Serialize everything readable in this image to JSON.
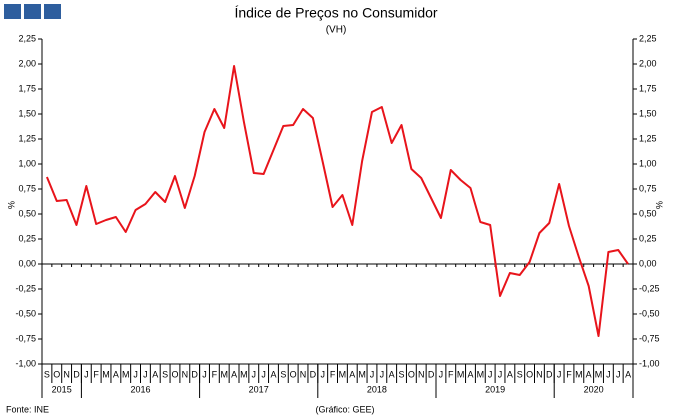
{
  "chart_data": {
    "type": "line",
    "title": "Índice de Preços no Consumidor",
    "subtitle": "(VH)",
    "y_label": "%",
    "source": "Fonte: INE",
    "credit": "(Gráfico: GEE)",
    "color": "#e8141b",
    "categories": [
      "S",
      "O",
      "N",
      "D",
      "J",
      "F",
      "M",
      "A",
      "M",
      "J",
      "J",
      "A",
      "S",
      "O",
      "N",
      "D",
      "J",
      "F",
      "M",
      "A",
      "M",
      "J",
      "J",
      "A",
      "S",
      "O",
      "N",
      "D",
      "J",
      "F",
      "M",
      "A",
      "M",
      "J",
      "J",
      "A",
      "S",
      "O",
      "N",
      "D",
      "J",
      "F",
      "M",
      "A",
      "M",
      "J",
      "J",
      "A",
      "S",
      "O",
      "N",
      "D",
      "J",
      "F",
      "M",
      "A",
      "M",
      "J",
      "J",
      "A"
    ],
    "x_groups": [
      "2015",
      "2016",
      "2017",
      "2018",
      "2019",
      "2020"
    ],
    "values": [
      0.87,
      0.63,
      0.64,
      0.39,
      0.78,
      0.4,
      0.44,
      0.47,
      0.32,
      0.54,
      0.6,
      0.72,
      0.62,
      0.88,
      0.56,
      0.88,
      1.32,
      1.55,
      1.36,
      1.98,
      1.42,
      0.91,
      0.9,
      1.14,
      1.38,
      1.39,
      1.55,
      1.46,
      1.02,
      0.57,
      0.69,
      0.39,
      1.03,
      1.52,
      1.57,
      1.21,
      1.39,
      0.95,
      0.86,
      0.66,
      0.46,
      0.94,
      0.84,
      0.76,
      0.42,
      0.39,
      -0.32,
      -0.09,
      -0.11,
      0.02,
      0.31,
      0.41,
      0.8,
      0.38,
      0.07,
      -0.22,
      -0.72,
      0.12,
      0.14,
      0.0
    ],
    "ylim": [
      -1.0,
      2.25
    ],
    "yticks": [
      {
        "value": -1.0,
        "label": "-1,00"
      },
      {
        "value": -0.75,
        "label": "-0,75"
      },
      {
        "value": -0.5,
        "label": "-0,50"
      },
      {
        "value": -0.25,
        "label": "-0,25"
      },
      {
        "value": 0,
        "label": "0,00"
      },
      {
        "value": 0.25,
        "label": "0,25"
      },
      {
        "value": 0.5,
        "label": "0,50"
      },
      {
        "value": 0.75,
        "label": "0,75"
      },
      {
        "value": 1.0,
        "label": "1,00"
      },
      {
        "value": 1.25,
        "label": "1,25"
      },
      {
        "value": 1.5,
        "label": "1,50"
      },
      {
        "value": 1.75,
        "label": "1,75"
      },
      {
        "value": 2.0,
        "label": "2,00"
      },
      {
        "value": 2.25,
        "label": "2,25"
      }
    ]
  }
}
